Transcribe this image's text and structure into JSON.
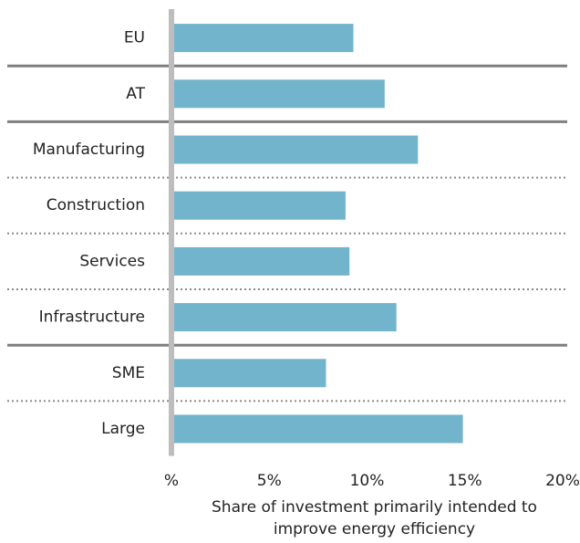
{
  "chart_data": {
    "type": "barh",
    "categories": [
      "EU",
      "AT",
      "Manufacturing",
      "Construction",
      "Services",
      "Infrastructure",
      "SME",
      "Large"
    ],
    "values": [
      9.3,
      10.9,
      12.6,
      8.9,
      9.1,
      11.5,
      7.9,
      14.9
    ],
    "color": "#72b4cb",
    "xlim": [
      0,
      20
    ],
    "xticks": [
      {
        "value": 0,
        "label": "%"
      },
      {
        "value": 5,
        "label": "5%"
      },
      {
        "value": 10,
        "label": "10%"
      },
      {
        "value": 15,
        "label": "15%"
      },
      {
        "value": 20,
        "label": "20%"
      }
    ],
    "x_label": [
      "Share of investment primarily intended to",
      "improve energy efficiency"
    ]
  }
}
